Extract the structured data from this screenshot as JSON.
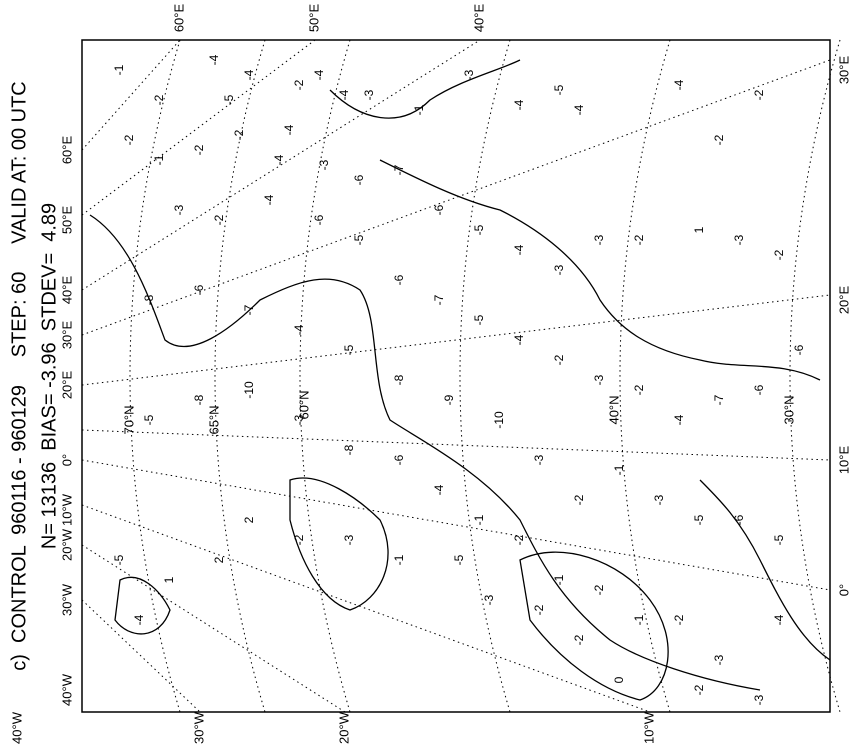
{
  "header": {
    "line1": "c)  CONTROL  960116 - 960129     STEP: 60     VALID AT: 00 UTC",
    "line2": "N= 13136  BIAS= -3.96  STDEV=  4.89"
  },
  "frame_labels": {
    "top": [
      "60°E",
      "50°E",
      "40°E"
    ],
    "bottom": [
      "40°W",
      "30°W",
      "20°W",
      "10°W"
    ],
    "left": [
      "60°E",
      "50°E",
      "40°E",
      "30°E",
      "20°E",
      "0°",
      "10°W",
      "20°W",
      "30°W",
      "40°W"
    ],
    "right": [
      "30°E",
      "20°E",
      "10°E",
      "0°"
    ]
  },
  "latitude_labels": [
    "70°N",
    "65°N",
    "60°N",
    "40°N",
    "30°N"
  ],
  "stations": [
    -1,
    -2,
    -4,
    -5,
    -4,
    -4,
    -2,
    -4,
    -4,
    -3,
    -1,
    -3,
    -4,
    -5,
    -4,
    -4,
    -2,
    -2,
    -2,
    -1,
    -2,
    -2,
    -4,
    -3,
    -6,
    -7,
    -6,
    -5,
    -4,
    -3,
    -3,
    -2,
    1,
    -3,
    -2,
    -3,
    -2,
    -4,
    -6,
    -5,
    -6,
    -7,
    -5,
    -4,
    -2,
    -3,
    -2,
    -4,
    -7,
    -6,
    -6,
    -8,
    -6,
    -7,
    -4,
    -5,
    -8,
    -9,
    -10,
    -3,
    -2,
    -1,
    -3,
    -5,
    -6,
    -5,
    -5,
    -8,
    -10,
    -3,
    -8,
    -6,
    -4,
    -1,
    -2,
    -1,
    -2,
    -1,
    -2,
    -3,
    -4,
    -5,
    1,
    2,
    2,
    -2,
    -3,
    -1,
    -5,
    -3,
    -2,
    -2,
    0,
    -2,
    -3,
    -4
  ]
}
